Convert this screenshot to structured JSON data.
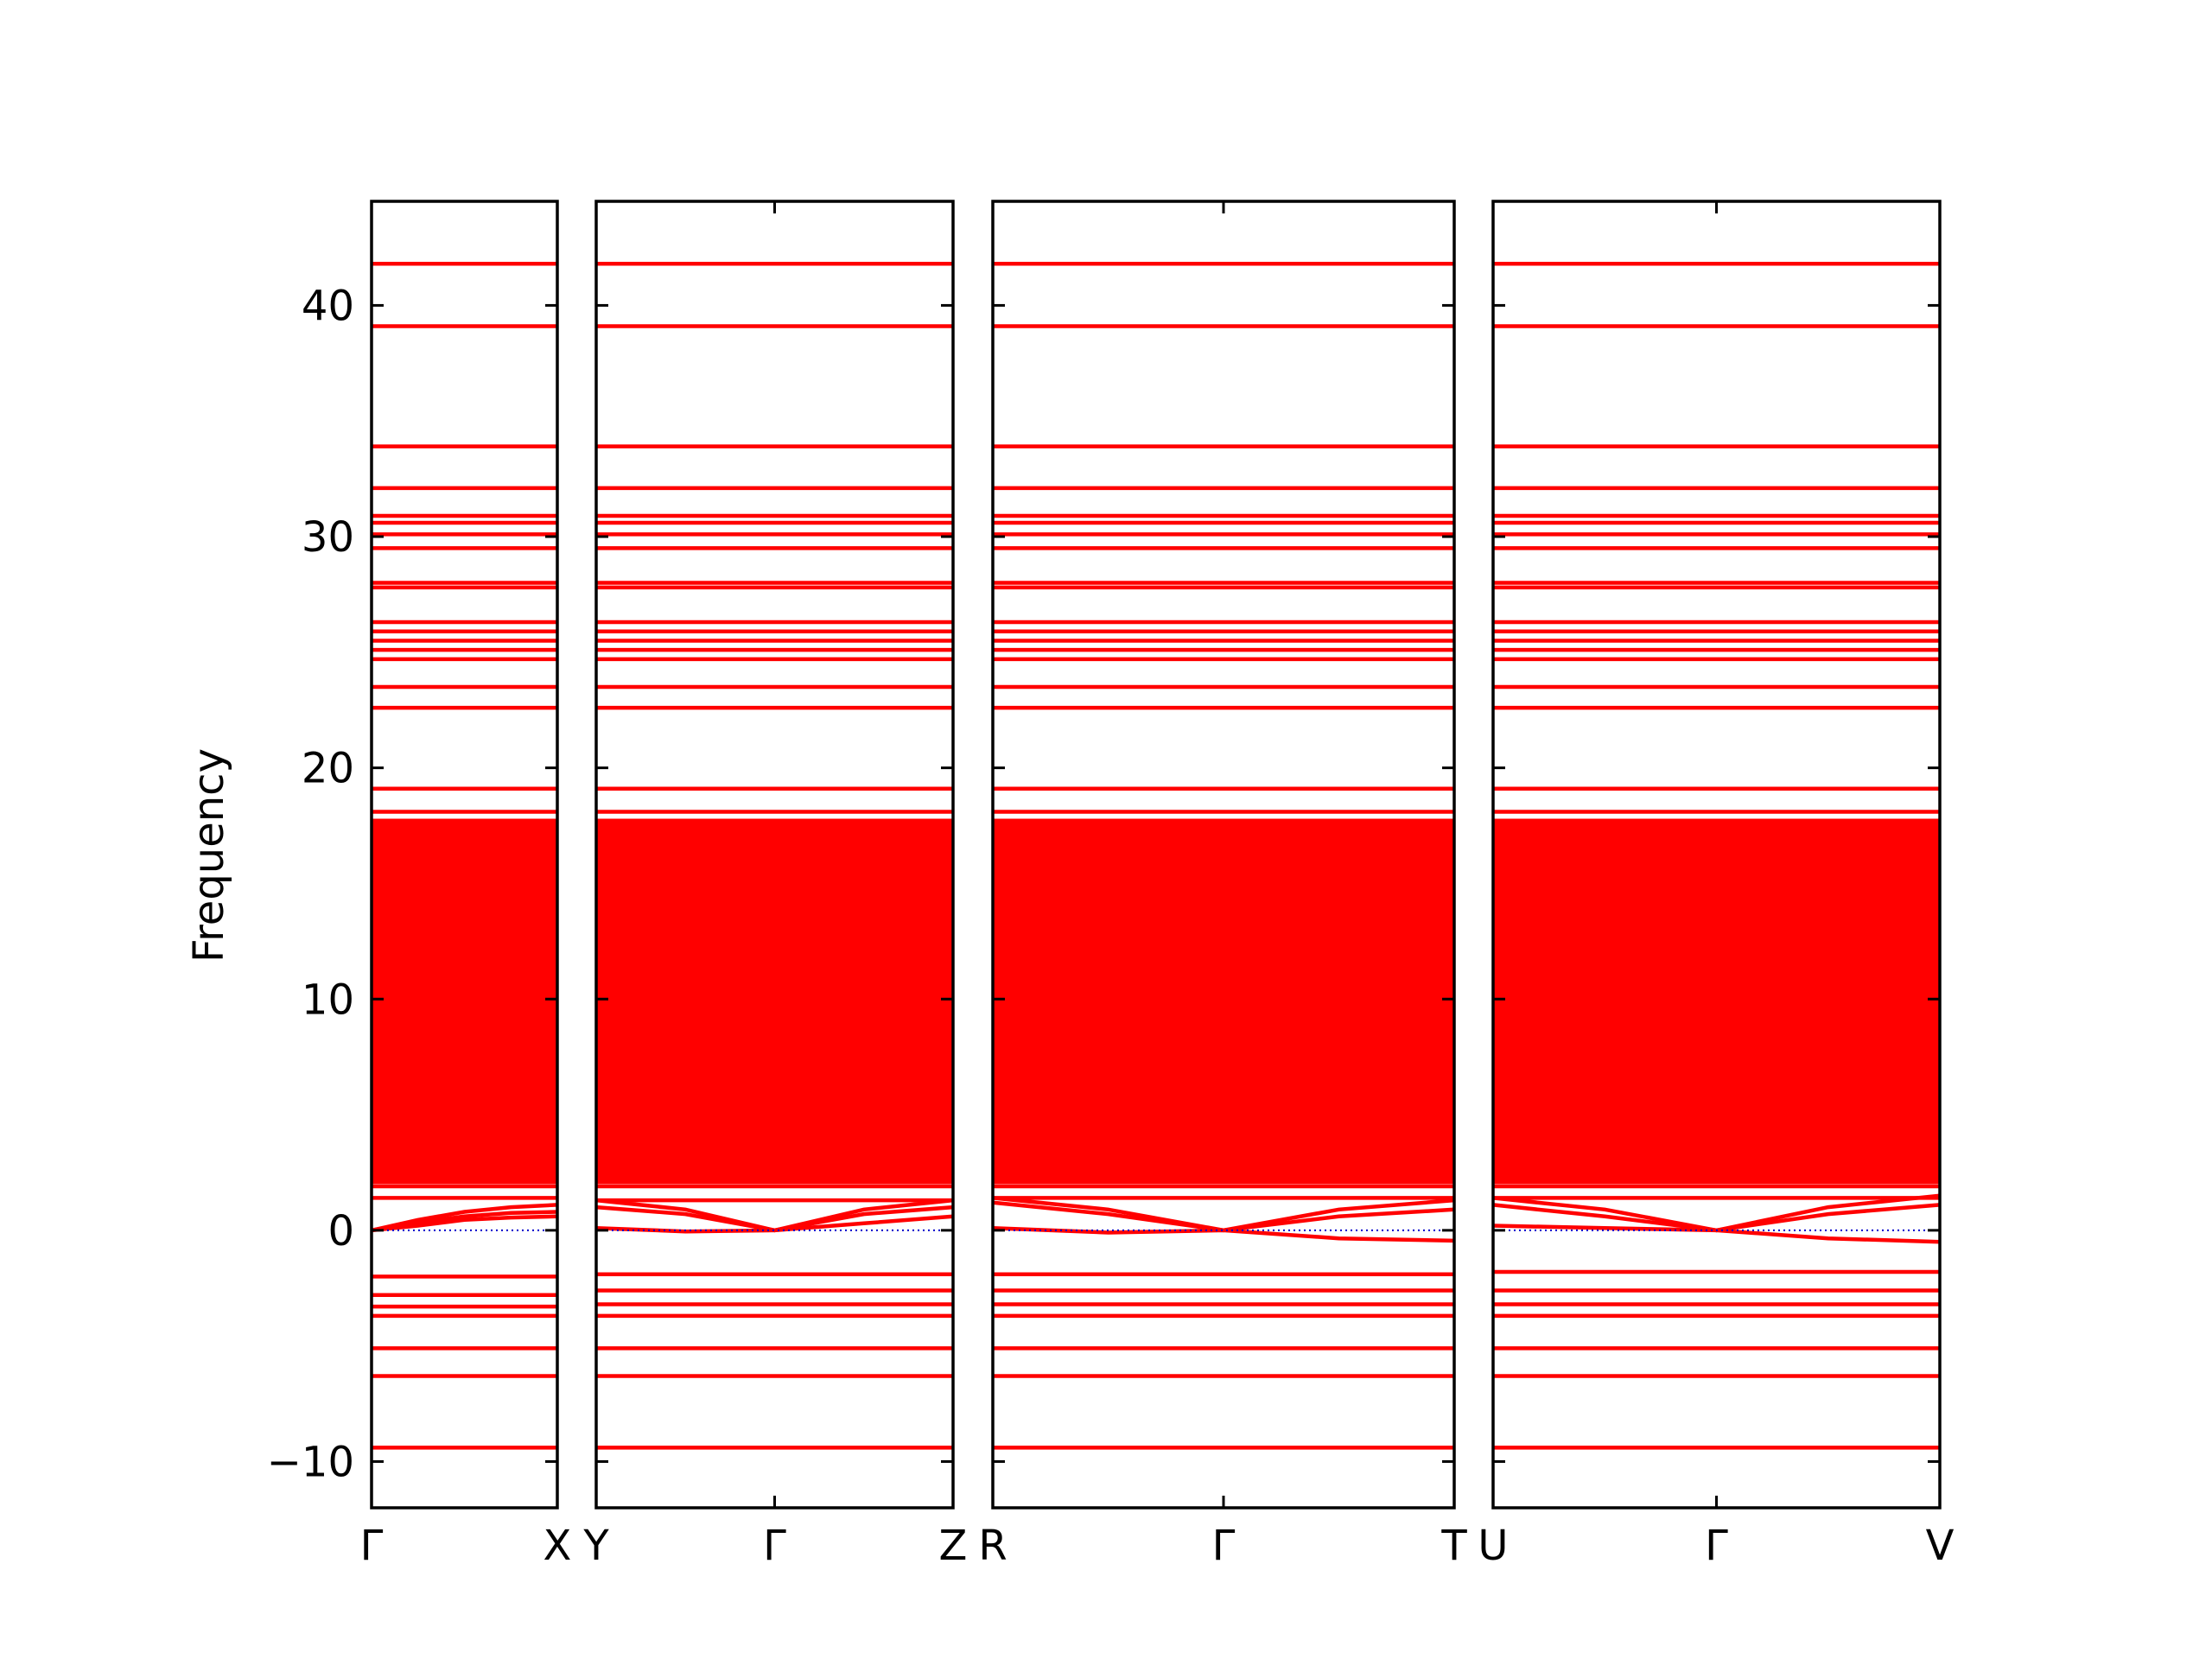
{
  "chart_data": {
    "type": "line",
    "title": "",
    "ylabel": "Frequency",
    "ylim": [
      -12,
      44.5
    ],
    "yticks": [
      -10,
      0,
      10,
      20,
      30,
      40
    ],
    "ytick_labels": [
      "−10",
      "0",
      "10",
      "20",
      "30",
      "40"
    ],
    "zero_line": {
      "value": 0,
      "color": "#0000cc",
      "style": "dotted"
    },
    "band_color": "#ff0000",
    "dense_band_range": [
      2.0,
      17.8
    ],
    "panels": [
      {
        "segment": "Γ-X",
        "path_labels": [
          "Γ",
          "X"
        ],
        "flat_bands": [
          41.8,
          39.1,
          33.9,
          32.1,
          30.9,
          30.6,
          30.1,
          29.5,
          28.0,
          27.8,
          26.3,
          25.9,
          25.5,
          25.1,
          24.7,
          23.5,
          22.6,
          19.1,
          18.1,
          1.9,
          1.4,
          -2.0,
          -2.8,
          -3.3,
          -3.7,
          -5.1,
          -6.3,
          -9.4
        ],
        "acoustic_bands": [
          {
            "x": [
              0,
              0.25,
              0.5,
              0.75,
              1.0
            ],
            "y": [
              0,
              0.45,
              0.8,
              1.0,
              1.1
            ]
          },
          {
            "x": [
              0,
              0.25,
              0.5,
              0.75,
              1.0
            ],
            "y": [
              0,
              0.35,
              0.6,
              0.75,
              0.8
            ]
          },
          {
            "x": [
              0,
              0.25,
              0.5,
              0.75,
              1.0
            ],
            "y": [
              0,
              0.2,
              0.45,
              0.55,
              0.6
            ]
          }
        ]
      },
      {
        "segment": "Y-Γ-Z",
        "path_labels": [
          "Y",
          "Γ",
          "Z"
        ],
        "flat_bands": [
          41.8,
          39.1,
          33.9,
          32.1,
          30.9,
          30.6,
          30.1,
          29.5,
          28.0,
          27.8,
          26.3,
          25.9,
          25.5,
          25.1,
          24.7,
          23.5,
          22.6,
          19.1,
          18.1,
          1.9,
          1.3,
          -1.9,
          -2.6,
          -3.2,
          -3.7,
          -5.1,
          -6.3,
          -9.4
        ],
        "acoustic_bands": [
          {
            "x": [
              0,
              0.25,
              0.5,
              0.75,
              1.0
            ],
            "y": [
              1.3,
              0.9,
              0,
              0.9,
              1.3
            ]
          },
          {
            "x": [
              0,
              0.25,
              0.5,
              0.75,
              1.0
            ],
            "y": [
              1.0,
              0.7,
              0,
              0.7,
              1.0
            ]
          },
          {
            "x": [
              0,
              0.25,
              0.5,
              0.75,
              1.0
            ],
            "y": [
              0.1,
              -0.05,
              0,
              0.3,
              0.6
            ]
          }
        ]
      },
      {
        "segment": "R-Γ-T",
        "path_labels": [
          "R",
          "Γ",
          "T"
        ],
        "flat_bands": [
          41.8,
          39.1,
          33.9,
          32.1,
          30.9,
          30.6,
          30.1,
          29.5,
          28.0,
          27.8,
          26.3,
          25.9,
          25.5,
          25.1,
          24.7,
          23.5,
          22.6,
          19.1,
          18.1,
          1.9,
          1.4,
          -1.9,
          -2.6,
          -3.2,
          -3.7,
          -5.1,
          -6.3,
          -9.4
        ],
        "acoustic_bands": [
          {
            "x": [
              0,
              0.25,
              0.5,
              0.75,
              1.0
            ],
            "y": [
              1.4,
              0.9,
              0,
              0.9,
              1.3
            ]
          },
          {
            "x": [
              0,
              0.25,
              0.5,
              0.75,
              1.0
            ],
            "y": [
              1.2,
              0.7,
              0,
              0.6,
              0.9
            ]
          },
          {
            "x": [
              0,
              0.25,
              0.5,
              0.75,
              1.0
            ],
            "y": [
              0.1,
              -0.1,
              0,
              -0.35,
              -0.45
            ]
          }
        ]
      },
      {
        "segment": "U-Γ-V",
        "path_labels": [
          "U",
          "Γ",
          "V"
        ],
        "flat_bands": [
          41.8,
          39.1,
          33.9,
          32.1,
          30.9,
          30.6,
          30.1,
          29.5,
          28.0,
          27.8,
          26.3,
          25.9,
          25.5,
          25.1,
          24.7,
          23.5,
          22.6,
          19.1,
          18.1,
          1.9,
          1.4,
          -1.8,
          -2.6,
          -3.2,
          -3.7,
          -5.1,
          -6.3,
          -9.4
        ],
        "acoustic_bands": [
          {
            "x": [
              0,
              0.25,
              0.5,
              0.75,
              1.0
            ],
            "y": [
              1.4,
              0.9,
              0,
              1.0,
              1.5
            ]
          },
          {
            "x": [
              0,
              0.25,
              0.5,
              0.75,
              1.0
            ],
            "y": [
              1.1,
              0.6,
              0,
              0.7,
              1.1
            ]
          },
          {
            "x": [
              0,
              0.25,
              0.5,
              0.75,
              1.0
            ],
            "y": [
              0.2,
              0.1,
              0,
              -0.35,
              -0.5
            ]
          }
        ]
      }
    ]
  }
}
